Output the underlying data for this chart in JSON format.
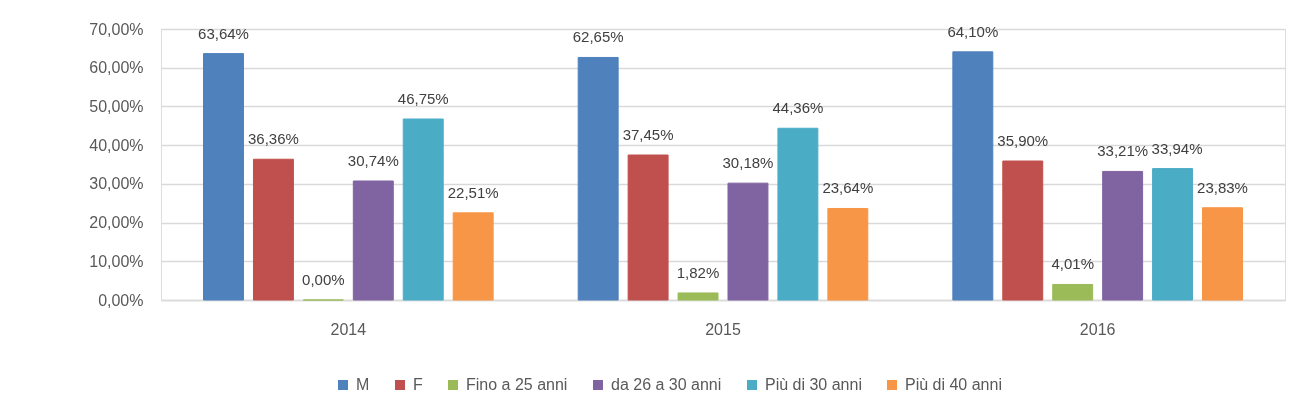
{
  "chart_data": {
    "type": "bar",
    "categories": [
      "2014",
      "2015",
      "2016"
    ],
    "series": [
      {
        "name": "M",
        "color": "#4f81bd",
        "values": [
          63.64,
          62.65,
          64.1
        ],
        "value_labels": [
          "63,64%",
          "62,65%",
          "64,10%"
        ]
      },
      {
        "name": "F",
        "color": "#c0504d",
        "values": [
          36.36,
          37.45,
          35.9
        ],
        "value_labels": [
          "36,36%",
          "37,45%",
          "35,90%"
        ]
      },
      {
        "name": "Fino a 25 anni",
        "color": "#9bbb59",
        "values": [
          0.0,
          1.82,
          4.01
        ],
        "value_labels": [
          "0,00%",
          "1,82%",
          "4,01%"
        ]
      },
      {
        "name": "da 26 a 30 anni",
        "color": "#8064a2",
        "values": [
          30.74,
          30.18,
          33.21
        ],
        "value_labels": [
          "30,74%",
          "30,18%",
          "33,21%"
        ]
      },
      {
        "name": "Più di 30 anni",
        "color": "#4bacc6",
        "values": [
          46.75,
          44.36,
          33.94
        ],
        "value_labels": [
          "46,75%",
          "44,36%",
          "33,94%"
        ]
      },
      {
        "name": "Più di 40 anni",
        "color": "#f79646",
        "values": [
          22.51,
          23.64,
          23.83
        ],
        "value_labels": [
          "22,51%",
          "23,64%",
          "23,83%"
        ]
      }
    ],
    "ylim": [
      0,
      70
    ],
    "yticks": [
      {
        "value": 0,
        "label": "0,00%"
      },
      {
        "value": 10,
        "label": "10,00%"
      },
      {
        "value": 20,
        "label": "20,00%"
      },
      {
        "value": 30,
        "label": "30,00%"
      },
      {
        "value": 40,
        "label": "40,00%"
      },
      {
        "value": 50,
        "label": "50,00%"
      },
      {
        "value": 60,
        "label": "60,00%"
      },
      {
        "value": 70,
        "label": "70,00%"
      }
    ],
    "grid": "y",
    "legend": "bottom"
  }
}
